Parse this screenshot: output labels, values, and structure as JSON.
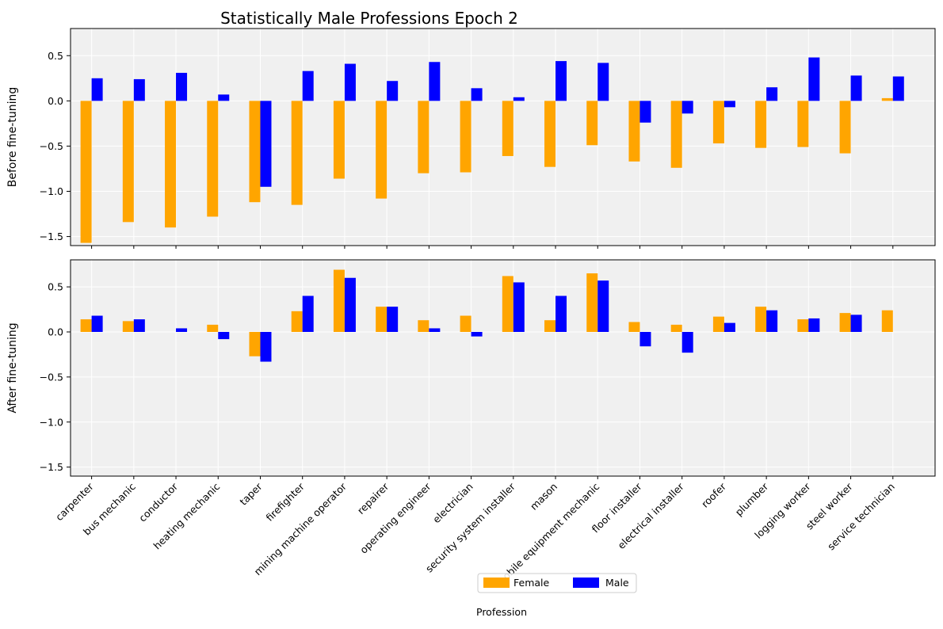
{
  "chart_data": {
    "type": "bar",
    "title": "Statistically Male Professions Epoch 2",
    "xlabel": "Profession",
    "categories": [
      "carpenter",
      "bus mechanic",
      "conductor",
      "heating mechanic",
      "taper",
      "firefighter",
      "mining machine operator",
      "repairer",
      "operating engineer",
      "electrician",
      "security system installer",
      "mason",
      "mobile equipment mechanic",
      "floor installer",
      "electrical installer",
      "roofer",
      "plumber",
      "logging worker",
      "steel worker",
      "service technician"
    ],
    "ylim": [
      -1.6,
      0.8
    ],
    "yticks": [
      "0.5",
      "0.0",
      "−0.5",
      "−1.0",
      "−1.5"
    ],
    "ytick_values": [
      0.5,
      0.0,
      -0.5,
      -1.0,
      -1.5
    ],
    "grid": true,
    "legend_position": "bottom-center",
    "series_colors": {
      "Female": "#ffa500",
      "Male": "#0000ff"
    },
    "panel_background": "#f0f0f0",
    "panels": [
      {
        "ylabel": "Before fine-tuning",
        "series": [
          {
            "name": "Female",
            "values": [
              -1.57,
              -1.34,
              -1.4,
              -1.28,
              -1.12,
              -1.15,
              -0.86,
              -1.08,
              -0.8,
              -0.79,
              -0.61,
              -0.73,
              -0.49,
              -0.67,
              -0.74,
              -0.47,
              -0.52,
              -0.51,
              -0.58,
              0.03
            ]
          },
          {
            "name": "Male",
            "values": [
              0.25,
              0.24,
              0.31,
              0.07,
              -0.95,
              0.33,
              0.41,
              0.22,
              0.43,
              0.14,
              0.04,
              0.44,
              0.42,
              -0.24,
              -0.14,
              -0.07,
              0.15,
              0.48,
              0.28,
              0.27
            ]
          }
        ]
      },
      {
        "ylabel": "After fine-tuning",
        "series": [
          {
            "name": "Female",
            "values": [
              0.14,
              0.12,
              0.0,
              0.08,
              -0.27,
              0.23,
              0.69,
              0.28,
              0.13,
              0.18,
              0.62,
              0.13,
              0.65,
              0.11,
              0.08,
              0.17,
              0.28,
              0.14,
              0.21,
              0.24
            ]
          },
          {
            "name": "Male",
            "values": [
              0.18,
              0.14,
              0.04,
              -0.08,
              -0.33,
              0.4,
              0.6,
              0.28,
              0.04,
              -0.05,
              0.55,
              0.4,
              0.57,
              -0.16,
              -0.23,
              0.1,
              0.24,
              0.15,
              0.19,
              0.0
            ]
          }
        ]
      }
    ]
  }
}
